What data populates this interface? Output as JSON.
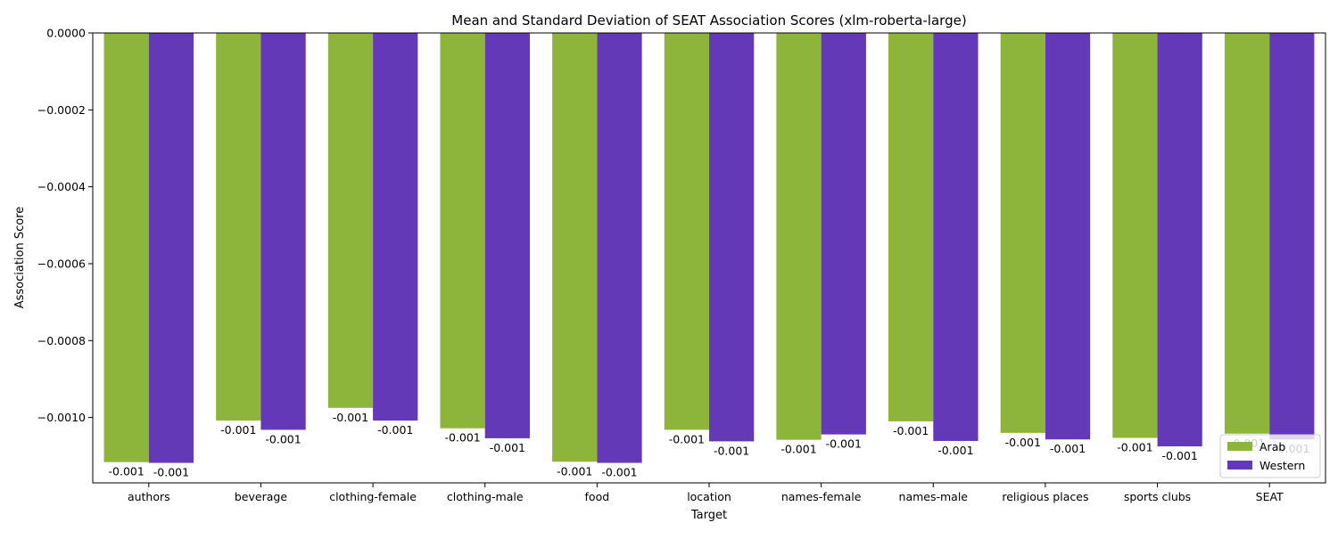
{
  "chart_data": {
    "type": "bar",
    "title": "Mean and Standard Deviation of SEAT Association Scores (xlm-roberta-large)",
    "xlabel": "Target",
    "ylabel": "Association Score",
    "categories": [
      "authors",
      "beverage",
      "clothing-female",
      "clothing-male",
      "food",
      "location",
      "names-female",
      "names-male",
      "religious places",
      "sports clubs",
      "SEAT"
    ],
    "series": [
      {
        "name": "Arab",
        "color": "#8db53c",
        "values": [
          -0.001116,
          -0.001008,
          -0.000975,
          -0.001028,
          -0.001115,
          -0.001032,
          -0.001058,
          -0.00101,
          -0.00104,
          -0.001053,
          -0.001042
        ],
        "labels": [
          "-0.001",
          "-0.001",
          "-0.001",
          "-0.001",
          "-0.001",
          "-0.001",
          "-0.001",
          "-0.001",
          "-0.001",
          "-0.001",
          "-0.001"
        ]
      },
      {
        "name": "Western",
        "color": "#6339b8",
        "values": [
          -0.001118,
          -0.001032,
          -0.001008,
          -0.001054,
          -0.001118,
          -0.001062,
          -0.001044,
          -0.001061,
          -0.001057,
          -0.001075,
          -0.001057
        ],
        "labels": [
          "-0.001",
          "-0.001",
          "-0.001",
          "-0.001",
          "-0.001",
          "-0.001",
          "-0.001",
          "-0.001",
          "-0.001",
          "-0.001",
          "-0.001"
        ]
      }
    ],
    "ylim": [
      -0.00117,
      0
    ],
    "yticks": [
      0,
      -0.0002,
      -0.0004,
      -0.0006,
      -0.0008,
      -0.001
    ],
    "ytick_labels": [
      "0.0000",
      "−0.0002",
      "−0.0004",
      "−0.0006",
      "−0.0008",
      "−0.0010"
    ],
    "grid": false,
    "legend_position": "lower-right"
  }
}
